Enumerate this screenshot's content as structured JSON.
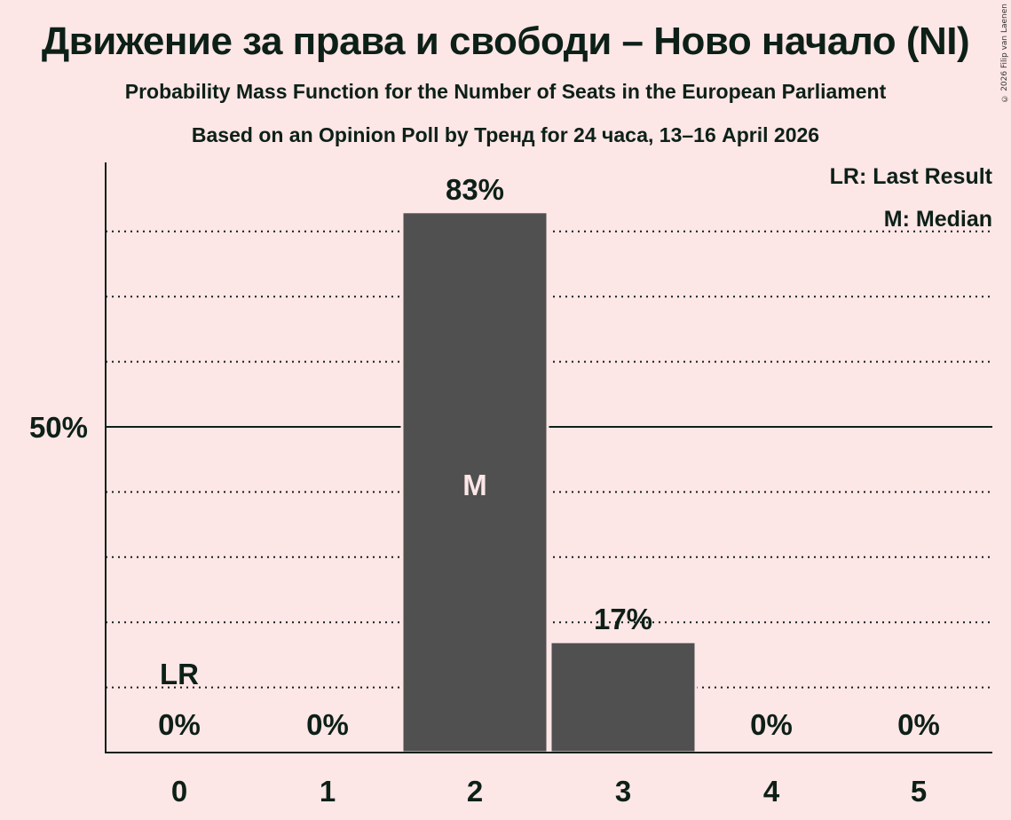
{
  "header": {
    "title": "Движение за права и свободи – Ново начало (NI)",
    "subtitle": "Probability Mass Function for the Number of Seats in the European Parliament",
    "source": "Based on an Opinion Poll by Тренд for 24 часа, 13–16 April 2026",
    "copyright": "© 2026 Filip van Laenen"
  },
  "legend": {
    "lr": "LR: Last Result",
    "m": "M: Median"
  },
  "colors": {
    "background": "#fde6e6",
    "bar": "#505050",
    "text": "#0d2018",
    "median_label": "#fde6e6"
  },
  "chart_data": {
    "type": "bar",
    "title": "Движение за права и свободи – Ново начало (NI)",
    "subtitle": "Probability Mass Function for the Number of Seats in the European Parliament",
    "xlabel": "",
    "ylabel": "",
    "categories": [
      "0",
      "1",
      "2",
      "3",
      "4",
      "5"
    ],
    "values": [
      0,
      0,
      83,
      17,
      0,
      0
    ],
    "value_labels": [
      "0%",
      "0%",
      "83%",
      "17%",
      "0%",
      "0%"
    ],
    "ylim": [
      0,
      90
    ],
    "y_ticks": [
      {
        "value": 50,
        "label": "50%"
      }
    ],
    "gridlines": [
      10,
      20,
      30,
      40,
      50,
      60,
      70,
      80
    ],
    "grid": "dotted, solid at 50%",
    "annotations": [
      {
        "category": "0",
        "text": "LR",
        "meaning": "Last Result"
      },
      {
        "category": "2",
        "text": "M",
        "meaning": "Median"
      }
    ],
    "legend_position": "top-right"
  }
}
